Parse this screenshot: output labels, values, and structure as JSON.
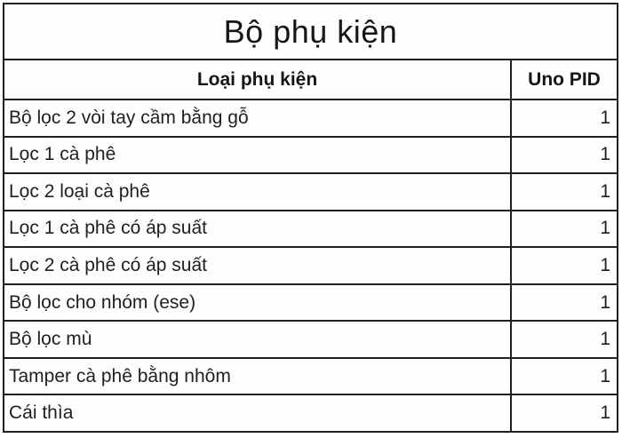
{
  "table": {
    "title": "Bộ phụ kiện",
    "columns": [
      {
        "label": "Loại phụ kiện"
      },
      {
        "label": "Uno PID"
      }
    ],
    "rows": [
      {
        "label": "Bộ lọc 2 vòi tay cầm bằng gỗ",
        "qty": "1"
      },
      {
        "label": "Lọc 1 cà phê",
        "qty": "1"
      },
      {
        "label": "Lọc 2 loại cà phê",
        "qty": "1"
      },
      {
        "label": "Lọc 1 cà phê có áp suất",
        "qty": "1"
      },
      {
        "label": "Lọc 2 cà phê có áp suất",
        "qty": "1"
      },
      {
        "label": "Bộ lọc cho nhóm (ese)",
        "qty": "1"
      },
      {
        "label": "Bộ lọc mù",
        "qty": "1"
      },
      {
        "label": "Tamper cà phê bằng nhôm",
        "qty": "1"
      },
      {
        "label": "Cái thìa",
        "qty": "1"
      }
    ],
    "colors": {
      "border": "#1f1f1f",
      "text": "#1f1f1f",
      "background": "#fefefe"
    }
  }
}
